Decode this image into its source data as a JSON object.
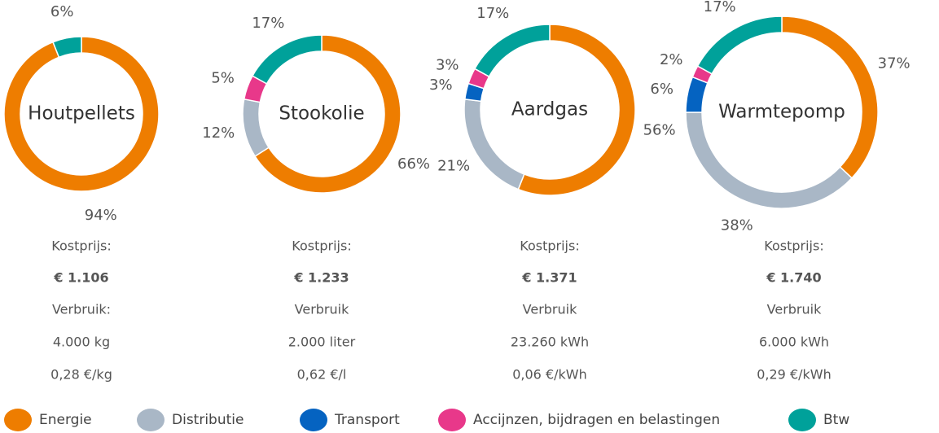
{
  "chart_data": {
    "type": "donut",
    "categories": [
      "Energie",
      "Distributie",
      "Transport",
      "Accijnzen, bijdragen en belastingen",
      "Btw"
    ],
    "colors": [
      "#ee7d00",
      "#a9b7c6",
      "#0563c1",
      "#e8388a",
      "#00a19a"
    ],
    "series": [
      {
        "name": "Houtpellets",
        "values": [
          94,
          null,
          null,
          null,
          6
        ],
        "value_labels": [
          "94%",
          null,
          null,
          null,
          "6%"
        ],
        "details": [
          "Kostprijs:",
          "€ 1.106",
          "Verbruik:",
          "4.000 kg",
          "0,28 €/kg"
        ]
      },
      {
        "name": "Stookolie",
        "values": [
          66,
          12,
          null,
          5,
          17
        ],
        "value_labels": [
          "66%",
          "12%",
          null,
          "5%",
          "17%"
        ],
        "details": [
          "Kostprijs:",
          "€ 1.233",
          "Verbruik",
          "2.000 liter",
          "0,62 €/l"
        ]
      },
      {
        "name": "Aardgas",
        "values": [
          56,
          21,
          3,
          3,
          17
        ],
        "value_labels": [
          "56%",
          "21%",
          "3%",
          "3%",
          "17%"
        ],
        "details": [
          "Kostprijs:",
          "€ 1.371",
          "Verbruik",
          "23.260 kWh",
          "0,06 €/kWh"
        ]
      },
      {
        "name": "Warmtepomp",
        "values": [
          37,
          38,
          6,
          2,
          17
        ],
        "value_labels": [
          "37%",
          "38%",
          "6%",
          "2%",
          "17%"
        ],
        "details": [
          "Kostprijs:",
          "€ 1.740",
          "Verbruik",
          "6.000 kWh",
          "0,29 €/kWh"
        ]
      }
    ]
  }
}
